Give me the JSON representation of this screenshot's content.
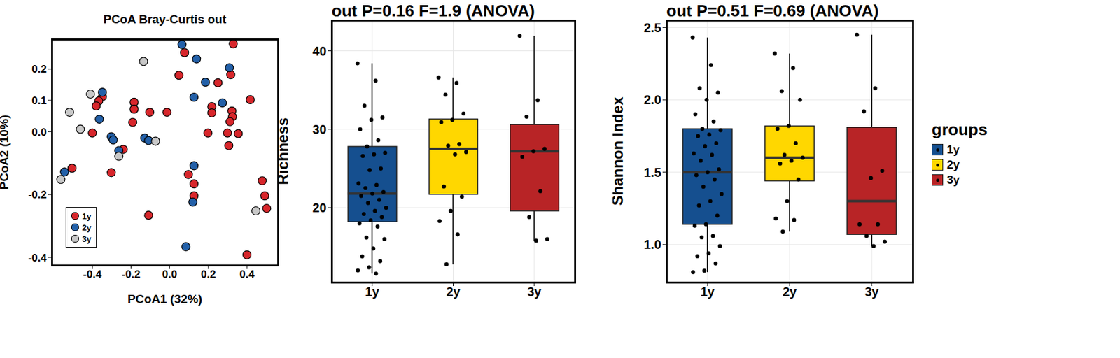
{
  "chart_data": [
    {
      "type": "scatter",
      "title": "PCoA Bray-Curtis out",
      "x_label": "PCoA1 (32%)",
      "y_label": "PCoA2 (10%)",
      "xlim": [
        -0.61,
        0.56
      ],
      "xticks": [
        -0.4,
        -0.2,
        {
          "value": 0,
          "label": "0.0"
        },
        0.2,
        0.4
      ],
      "ylim": [
        -0.425,
        0.295
      ],
      "yticks": [
        -0.4,
        -0.2,
        {
          "value": 0,
          "label": "0.0"
        },
        0.1,
        0.2
      ],
      "grid": false,
      "legend": "lower left",
      "series": [
        {
          "name": "1y",
          "color": "#D7262B",
          "x": [
            0.077,
            0.048,
            0.329,
            0.316,
            -0.348,
            -0.367,
            -0.38,
            -0.184,
            -0.184,
            -0.191,
            -0.103,
            0.25,
            0.218,
            0.218,
            0.322,
            0.325,
            0.312,
            0.417,
            0.198,
            0.299,
            0.355,
            0.306,
            -0.4,
            -0.24,
            -0.302,
            -0.505,
            0.097,
            0.126,
            0.126,
            -0.109,
            0.4,
            0.479,
            0.492,
            0.502,
            -0.014
          ],
          "values": [
            0.252,
            0.18,
            0.28,
            0.182,
            0.112,
            0.098,
            0.082,
            0.094,
            0.072,
            0.03,
            0.062,
            0.156,
            0.08,
            0.06,
            0.066,
            0.048,
            0.032,
            0.102,
            -0.004,
            -0.004,
            -0.006,
            -0.044,
            -0.004,
            -0.056,
            -0.13,
            -0.116,
            -0.136,
            -0.166,
            -0.204,
            -0.266,
            -0.392,
            -0.156,
            -0.204,
            -0.244,
            0.062
          ]
        },
        {
          "name": "2y",
          "color": "#2360A8",
          "x": [
            0.064,
            0.139,
            0.309,
            -0.348,
            -0.364,
            0.126,
            0.185,
            0.273,
            -0.302,
            -0.292,
            -0.263,
            -0.129,
            -0.109,
            -0.544,
            0.126,
            0.12,
            0.084
          ],
          "values": [
            0.278,
            0.232,
            0.204,
            0.126,
            0.04,
            0.11,
            0.158,
            0.092,
            -0.016,
            -0.026,
            -0.06,
            -0.02,
            -0.028,
            -0.128,
            -0.108,
            -0.224,
            -0.366
          ]
        },
        {
          "name": "3y",
          "color": "#C8C8C8",
          "x": [
            -0.135,
            -0.41,
            -0.518,
            -0.462,
            -0.263,
            -0.073,
            -0.563,
            0.446
          ],
          "values": [
            0.224,
            0.12,
            0.062,
            0.008,
            -0.078,
            -0.03,
            -0.152,
            -0.252
          ]
        }
      ]
    },
    {
      "type": "box",
      "title": "out P=0.16 F=1.9 (ANOVA)",
      "y_label": "Richness",
      "categories": [
        "1y",
        "2y",
        "3y"
      ],
      "colors": [
        "#154F8F",
        "#FFD700",
        "#B82426"
      ],
      "ylim": [
        10.5,
        43.9
      ],
      "yticks": [
        20,
        30,
        40
      ],
      "grid": true,
      "boxes": [
        {
          "min": 11.6,
          "q1": 18.2,
          "median": 21.8,
          "q3": 27.8,
          "max": 38.4
        },
        {
          "min": 12.8,
          "q1": 21.7,
          "median": 27.5,
          "q3": 31.3,
          "max": 36.6
        },
        {
          "min": 15.8,
          "q1": 19.6,
          "median": 27.2,
          "q3": 30.6,
          "max": 41.9
        }
      ],
      "points": [
        [
          38.4,
          36.2,
          33.0,
          31.5,
          31.2,
          30.0,
          28.6,
          27.8,
          27.0,
          26.8,
          26.6,
          25.0,
          24.8,
          23.1,
          22.9,
          22.5,
          22.0,
          21.8,
          21.5,
          21.0,
          20.6,
          20.0,
          19.6,
          19.2,
          18.8,
          18.4,
          18.0,
          17.6,
          16.2,
          16.0,
          14.8,
          13.8,
          13.2,
          12.4,
          12.0,
          11.6
        ],
        [
          36.6,
          35.9,
          34.4,
          32.0,
          31.2,
          30.9,
          28.1,
          27.9,
          27.1,
          26.8,
          22.7,
          21.4,
          19.6,
          18.3,
          16.6,
          12.8
        ],
        [
          41.9,
          33.7,
          31.6,
          27.5,
          27.2,
          26.5,
          22.1,
          18.8,
          16.0,
          15.8
        ]
      ]
    },
    {
      "type": "box",
      "title": "out P=0.51 F=0.69 (ANOVA)",
      "y_label": "Shannon Index",
      "categories": [
        "1y",
        "2y",
        "3y"
      ],
      "colors": [
        "#154F8F",
        "#FFD700",
        "#B82426"
      ],
      "ylim": [
        0.74,
        2.55
      ],
      "yticks": [
        {
          "value": 1,
          "label": "1.0"
        },
        1.5,
        {
          "value": 2,
          "label": "2.0"
        },
        2.5
      ],
      "grid": true,
      "legend": "right",
      "legend_title": "groups",
      "boxes": [
        {
          "min": 0.81,
          "q1": 1.14,
          "median": 1.5,
          "q3": 1.8,
          "max": 2.43
        },
        {
          "min": 1.09,
          "q1": 1.44,
          "median": 1.6,
          "q3": 1.82,
          "max": 2.32
        },
        {
          "min": 0.99,
          "q1": 1.07,
          "median": 1.3,
          "q3": 1.81,
          "max": 2.45
        }
      ],
      "points": [
        [
          2.43,
          2.24,
          2.08,
          2.05,
          2.0,
          1.9,
          1.85,
          1.8,
          1.79,
          1.76,
          1.75,
          1.7,
          1.68,
          1.63,
          1.62,
          1.58,
          1.52,
          1.5,
          1.48,
          1.45,
          1.4,
          1.35,
          1.3,
          1.27,
          1.2,
          1.14,
          1.13,
          1.06,
          1.05,
          0.99,
          0.94,
          0.92,
          0.87,
          0.82,
          0.81
        ],
        [
          2.32,
          2.22,
          2.06,
          2.0,
          1.82,
          1.8,
          1.7,
          1.62,
          1.6,
          1.58,
          1.56,
          1.45,
          1.3,
          1.18,
          1.17,
          1.09
        ],
        [
          2.45,
          2.08,
          1.92,
          1.51,
          1.46,
          1.14,
          1.14,
          1.06,
          1.02,
          0.99
        ]
      ]
    }
  ]
}
